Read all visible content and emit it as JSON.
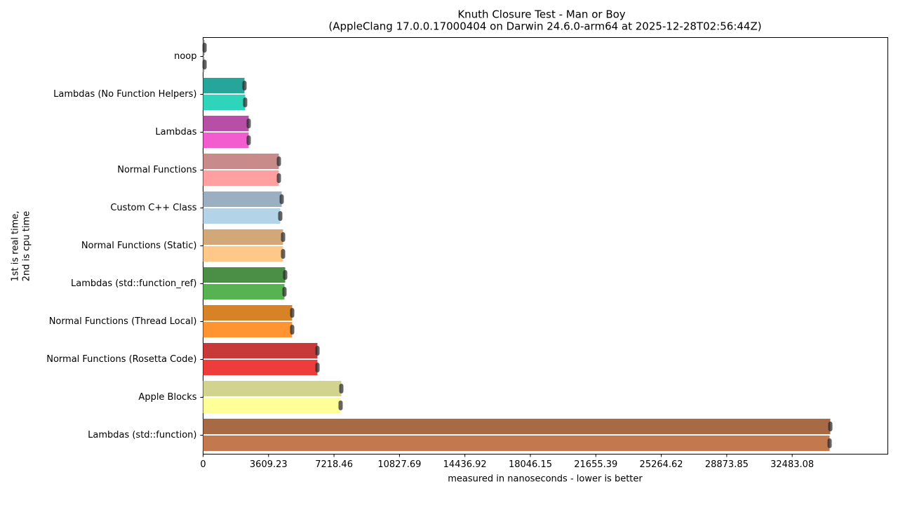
{
  "chart_data": {
    "type": "hbar",
    "title": "Knuth Closure Test - Man or Boy",
    "subtitle": "(AppleClang 17.0.0.17000404 on Darwin 24.6.0-arm64 at 2025-12-28T02:56:44Z)",
    "xlabel": "measured in nanoseconds - lower is better",
    "ylabel": [
      "1st is real time,",
      "2nd is cpu time"
    ],
    "categories": [
      "noop",
      "Lambdas (No Function Helpers)",
      "Lambdas",
      "Normal Functions",
      "Custom C++ Class",
      "Normal Functions (Static)",
      "Lambdas (std::function_ref)",
      "Normal Functions (Thread Local)",
      "Normal Functions (Rosetta Code)",
      "Apple Blocks",
      "Lambdas (std::function)"
    ],
    "series": [
      {
        "colors": [
          "#9a9a9a",
          "#26a69a",
          "#b84fa6",
          "#c98a8a",
          "#9ab0c0",
          "#d3a878",
          "#4a8f45",
          "#d88228",
          "#c83a3a",
          "#d3d390",
          "#a86a45"
        ],
        "values": [
          80,
          2282,
          2514,
          4178,
          4333,
          4410,
          4526,
          4913,
          6306,
          7621,
          34585
        ]
      },
      {
        "colors": [
          "#bdbdbd",
          "#2ed5bb",
          "#f25ccf",
          "#ffa0a0",
          "#b3d4e8",
          "#ffc888",
          "#57b352",
          "#ff9430",
          "#ee3c3c",
          "#ffff99",
          "#c4784e"
        ],
        "values": [
          80,
          2320,
          2514,
          4178,
          4255,
          4410,
          4487,
          4913,
          6306,
          7582,
          34546
        ]
      }
    ],
    "xlim": [
      0,
      37757
    ],
    "xticks": [
      0,
      3609.23,
      7218.46,
      10827.69,
      14436.92,
      18046.15,
      21655.39,
      25264.62,
      28873.85,
      32483.08
    ]
  }
}
